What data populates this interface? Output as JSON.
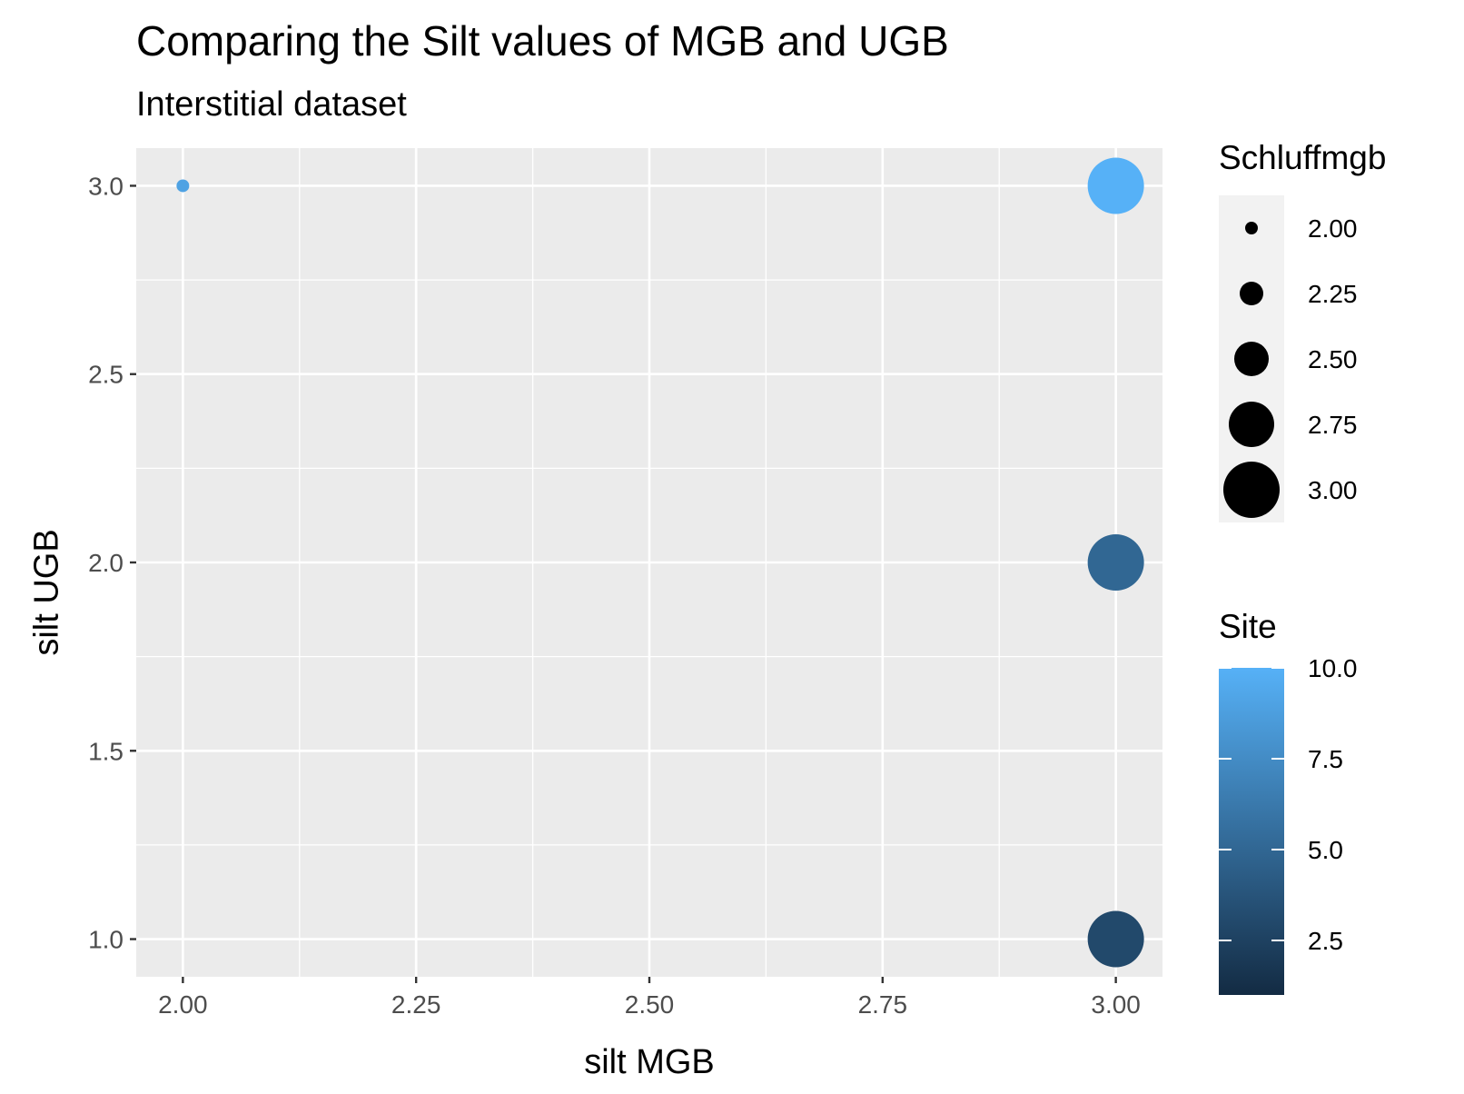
{
  "chart_data": {
    "type": "scatter",
    "title": "Comparing the Silt values of MGB and UGB",
    "subtitle": "Interstitial dataset",
    "xlabel": "silt MGB",
    "ylabel": "silt UGB",
    "xlim": [
      1.95,
      3.05
    ],
    "ylim": [
      0.9,
      3.1
    ],
    "x_ticks": [
      2.0,
      2.25,
      2.5,
      2.75,
      3.0
    ],
    "x_tick_labels": [
      "2.00",
      "2.25",
      "2.50",
      "2.75",
      "3.00"
    ],
    "y_ticks": [
      1.0,
      1.5,
      2.0,
      2.5,
      3.0
    ],
    "y_tick_labels": [
      "1.0",
      "1.5",
      "2.0",
      "2.5",
      "3.0"
    ],
    "grid": true,
    "points": [
      {
        "x": 2.0,
        "y": 3.0,
        "size": 2.0,
        "color_value": 9
      },
      {
        "x": 3.0,
        "y": 3.0,
        "size": 3.0,
        "color_value": 10
      },
      {
        "x": 3.0,
        "y": 2.0,
        "size": 3.0,
        "color_value": 5
      },
      {
        "x": 3.0,
        "y": 1.0,
        "size": 3.0,
        "color_value": 3
      }
    ],
    "size_legend": {
      "title": "Schluffmgb",
      "values": [
        2.0,
        2.25,
        2.5,
        2.75,
        3.0
      ],
      "labels": [
        "2.00",
        "2.25",
        "2.50",
        "2.75",
        "3.00"
      ]
    },
    "color_legend": {
      "title": "Site",
      "range": [
        1,
        10
      ],
      "ticks": [
        2.5,
        5.0,
        7.5,
        10.0
      ],
      "labels": [
        "2.5",
        "5.0",
        "7.5",
        "10.0"
      ],
      "low_color": "#132B43",
      "high_color": "#56B1F7"
    },
    "legend_placement": "right"
  }
}
